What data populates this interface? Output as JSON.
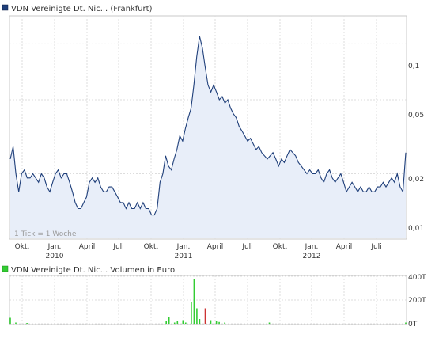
{
  "price_chart": {
    "legend": "VDN Vereinigte Dt. Nic... (Frankfurt)",
    "color": "#1f3f7a",
    "fill_color": "#e8eef9",
    "note": "1 Tick = 1 Woche",
    "y_ticks": [
      "0,1",
      "0,05",
      "0,02",
      "0,01"
    ]
  },
  "volume_chart": {
    "legend": "VDN Vereinigte Dt. Nic... Volumen in Euro",
    "color_up": "#33cc33",
    "color_down": "#cc3333",
    "y_ticks": [
      "400T",
      "200T",
      "0T"
    ]
  },
  "x_axis": {
    "months": [
      "Okt.",
      "Jan.",
      "April",
      "Juli",
      "Okt.",
      "Jan.",
      "April",
      "Juli",
      "Okt.",
      "Jan.",
      "April",
      "Juli"
    ],
    "years": [
      "2010",
      "2011",
      "2012"
    ]
  },
  "chart_data": [
    {
      "type": "line",
      "title": "VDN Vereinigte Dt. Nic... (Frankfurt)",
      "y_scale": "log",
      "ylim": [
        0.009,
        0.14
      ],
      "x_start": "2009-09",
      "x_end": "2012-10",
      "y": [
        0.024,
        0.028,
        0.02,
        0.016,
        0.02,
        0.021,
        0.019,
        0.019,
        0.02,
        0.019,
        0.018,
        0.02,
        0.019,
        0.017,
        0.016,
        0.018,
        0.02,
        0.021,
        0.019,
        0.02,
        0.02,
        0.018,
        0.016,
        0.014,
        0.013,
        0.013,
        0.014,
        0.015,
        0.018,
        0.019,
        0.018,
        0.019,
        0.017,
        0.016,
        0.016,
        0.017,
        0.017,
        0.016,
        0.015,
        0.014,
        0.014,
        0.013,
        0.014,
        0.013,
        0.013,
        0.014,
        0.013,
        0.014,
        0.013,
        0.013,
        0.012,
        0.012,
        0.013,
        0.018,
        0.02,
        0.025,
        0.022,
        0.021,
        0.024,
        0.027,
        0.032,
        0.03,
        0.035,
        0.04,
        0.045,
        0.06,
        0.085,
        0.11,
        0.095,
        0.075,
        0.06,
        0.055,
        0.06,
        0.055,
        0.05,
        0.052,
        0.048,
        0.05,
        0.045,
        0.042,
        0.04,
        0.036,
        0.034,
        0.032,
        0.03,
        0.031,
        0.029,
        0.027,
        0.028,
        0.026,
        0.025,
        0.024,
        0.025,
        0.026,
        0.024,
        0.022,
        0.024,
        0.023,
        0.025,
        0.027,
        0.026,
        0.025,
        0.023,
        0.022,
        0.021,
        0.02,
        0.021,
        0.02,
        0.02,
        0.021,
        0.019,
        0.018,
        0.02,
        0.021,
        0.019,
        0.018,
        0.019,
        0.02,
        0.018,
        0.016,
        0.017,
        0.018,
        0.017,
        0.016,
        0.017,
        0.016,
        0.016,
        0.017,
        0.016,
        0.016,
        0.017,
        0.017,
        0.018,
        0.017,
        0.018,
        0.019,
        0.018,
        0.02,
        0.017,
        0.016,
        0.026
      ]
    },
    {
      "type": "bar",
      "title": "VDN Vereinigte Dt. Nic... Volumen in Euro",
      "ylim": [
        0,
        400000
      ],
      "values": [
        50000,
        0,
        10000,
        0,
        0,
        0,
        5000,
        0,
        0,
        0,
        0,
        0,
        0,
        0,
        0,
        0,
        0,
        0,
        0,
        0,
        0,
        0,
        0,
        0,
        0,
        0,
        0,
        0,
        0,
        0,
        0,
        0,
        0,
        0,
        0,
        0,
        0,
        0,
        0,
        0,
        0,
        0,
        0,
        0,
        0,
        0,
        0,
        0,
        0,
        0,
        0,
        0,
        0,
        0,
        0,
        0,
        20000,
        60000,
        0,
        10000,
        20000,
        0,
        30000,
        10000,
        0,
        180000,
        380000,
        130000,
        40000,
        0,
        130000,
        0,
        30000,
        0,
        20000,
        15000,
        0,
        10000,
        0,
        0,
        0,
        0,
        0,
        0,
        0,
        0,
        0,
        0,
        0,
        0,
        0,
        0,
        0,
        10000,
        0,
        0,
        0,
        0,
        0,
        0,
        0,
        0,
        0,
        0,
        0,
        0,
        0,
        0,
        0,
        0,
        0,
        0,
        0,
        0,
        0,
        0,
        0,
        0,
        0,
        0,
        0,
        0,
        0,
        0,
        0,
        0,
        0,
        0,
        0,
        0,
        0,
        0,
        0,
        0,
        0,
        0,
        0,
        0,
        0,
        0,
        0,
        0,
        10000
      ]
    }
  ]
}
